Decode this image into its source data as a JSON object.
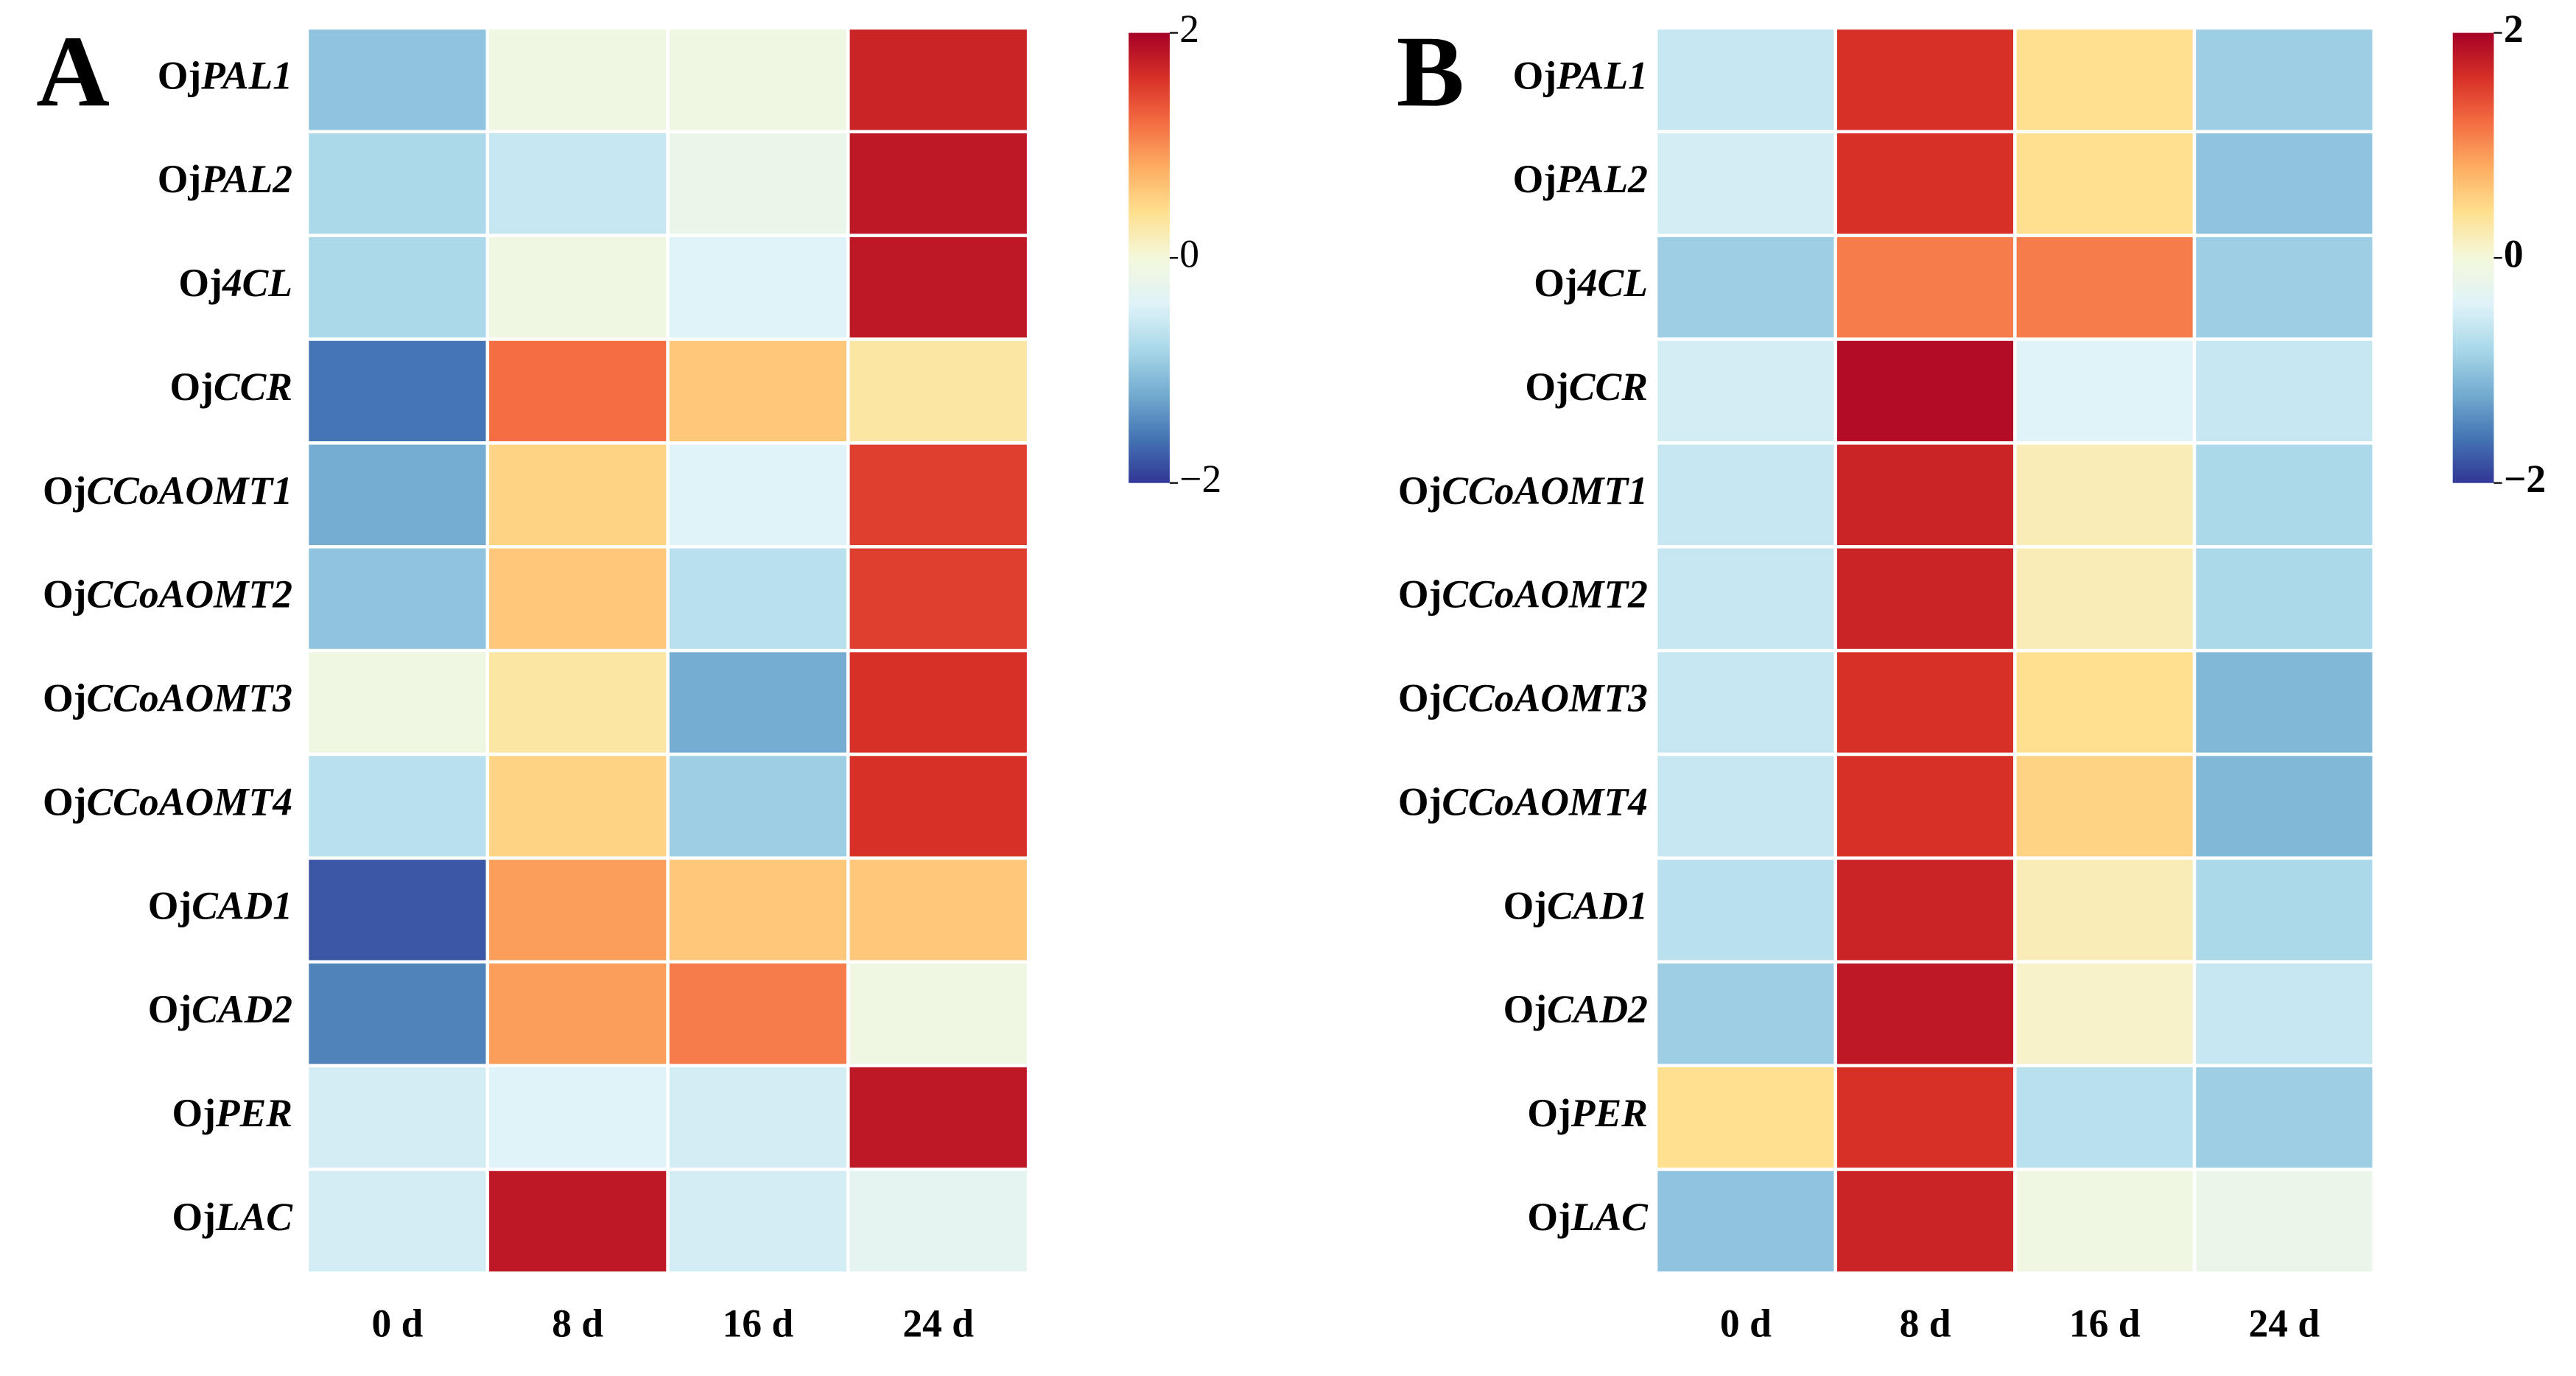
{
  "chart_data": [
    {
      "type": "heatmap",
      "panel_label": "A",
      "rows": [
        "OjPAL1",
        "OjPAL2",
        "Oj4CL",
        "OjCCR",
        "OjCCoAOMT1",
        "OjCCoAOMT2",
        "OjCCoAOMT3",
        "OjCCoAOMT4",
        "OjCAD1",
        "OjCAD2",
        "OjPER",
        "OjLAC"
      ],
      "columns": [
        "0 d",
        "8 d",
        "16 d",
        "24 d"
      ],
      "values": [
        [
          -1.0,
          -0.1,
          -0.1,
          1.7
        ],
        [
          -0.8,
          -0.6,
          -0.2,
          1.8
        ],
        [
          -0.8,
          -0.1,
          -0.4,
          1.8
        ],
        [
          -1.6,
          1.2,
          0.6,
          0.3
        ],
        [
          -1.2,
          0.5,
          -0.4,
          1.5
        ],
        [
          -1.0,
          0.6,
          -0.7,
          1.5
        ],
        [
          -0.1,
          0.3,
          -1.2,
          1.6
        ],
        [
          -0.7,
          0.5,
          -0.9,
          1.6
        ],
        [
          -1.8,
          0.9,
          0.6,
          0.6
        ],
        [
          -1.5,
          0.9,
          1.1,
          -0.1
        ],
        [
          -0.5,
          -0.4,
          -0.5,
          1.8
        ],
        [
          -0.5,
          1.8,
          -0.5,
          -0.3
        ]
      ],
      "zlim": [
        -2,
        2
      ],
      "colorbar_ticks": [
        2,
        0,
        {
          "value": -2,
          "label": "−2"
        }
      ],
      "colormap": [
        "#313695",
        "#4575b4",
        "#74add1",
        "#abd9e9",
        "#e0f3f8",
        "#f4f8dc",
        "#fee090",
        "#fdae61",
        "#f46d43",
        "#d73027",
        "#a50026"
      ]
    },
    {
      "type": "heatmap",
      "panel_label": "B",
      "rows": [
        "OjPAL1",
        "OjPAL2",
        "Oj4CL",
        "OjCCR",
        "OjCCoAOMT1",
        "OjCCoAOMT2",
        "OjCCoAOMT3",
        "OjCCoAOMT4",
        "OjCAD1",
        "OjCAD2",
        "OjPER",
        "OjLAC"
      ],
      "columns": [
        "0 d",
        "8 d",
        "16 d",
        "24 d"
      ],
      "values": [
        [
          -0.6,
          1.6,
          0.4,
          -0.9
        ],
        [
          -0.5,
          1.6,
          0.4,
          -1.0
        ],
        [
          -0.9,
          1.1,
          1.1,
          -0.9
        ],
        [
          -0.5,
          1.9,
          -0.4,
          -0.6
        ],
        [
          -0.6,
          1.7,
          0.2,
          -0.8
        ],
        [
          -0.6,
          1.7,
          0.2,
          -0.8
        ],
        [
          -0.6,
          1.6,
          0.4,
          -1.1
        ],
        [
          -0.6,
          1.6,
          0.5,
          -1.1
        ],
        [
          -0.7,
          1.7,
          0.2,
          -0.8
        ],
        [
          -0.9,
          1.8,
          0.1,
          -0.6
        ],
        [
          0.4,
          1.6,
          -0.7,
          -0.9
        ],
        [
          -1.0,
          1.7,
          -0.1,
          -0.2
        ]
      ],
      "zlim": [
        -2,
        2
      ],
      "colorbar_ticks": [
        2,
        0,
        {
          "value": -2,
          "label": "−2"
        }
      ],
      "colormap": [
        "#313695",
        "#4575b4",
        "#74add1",
        "#abd9e9",
        "#e0f3f8",
        "#f4f8dc",
        "#fee090",
        "#fdae61",
        "#f46d43",
        "#d73027",
        "#a50026"
      ]
    }
  ]
}
